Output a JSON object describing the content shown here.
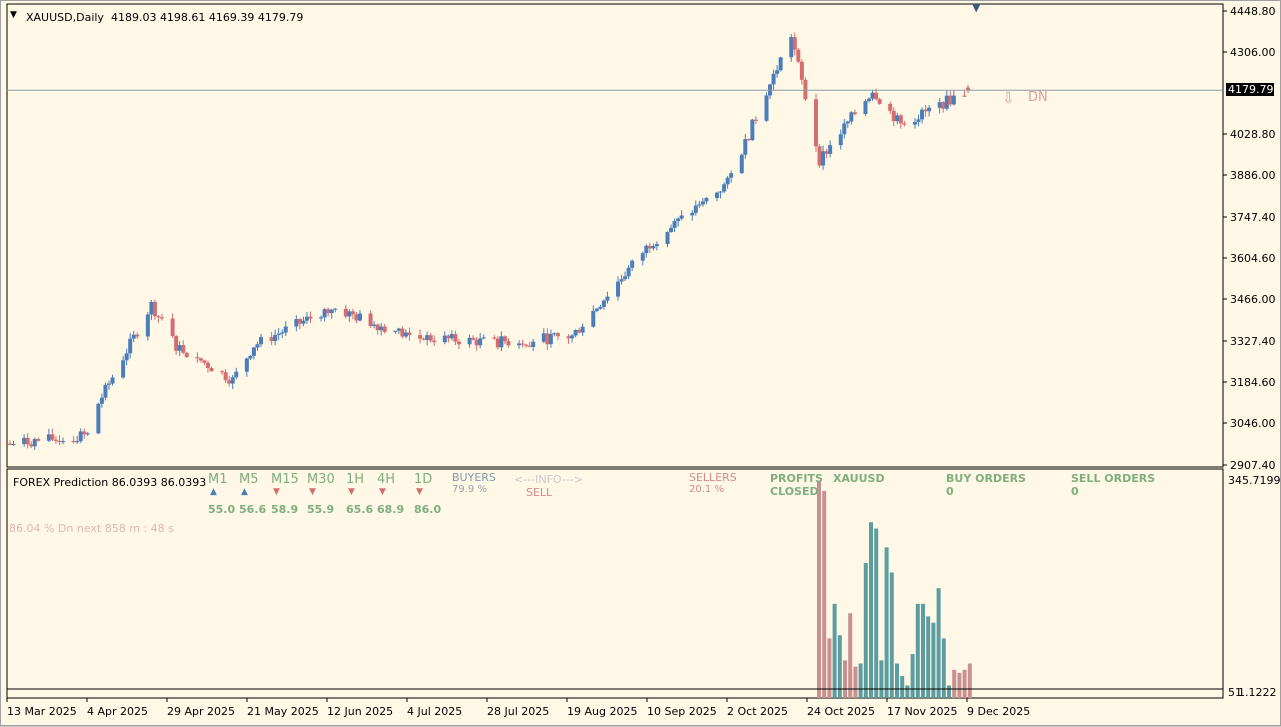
{
  "chart_header": {
    "symbol_tf": "XAUUSD,Daily",
    "ohlc": "4189.03 4198.61 4169.39 4179.79"
  },
  "current_price": "4179.79",
  "signal": "DN",
  "price_axis": [
    "4448.80",
    "4306.00",
    "4028.80",
    "3886.00",
    "3747.40",
    "3604.60",
    "3466.00",
    "3327.40",
    "3184.60",
    "3046.00",
    "2907.40"
  ],
  "date_axis": [
    "13 Mar 2025",
    "4 Apr 2025",
    "29 Apr 2025",
    "21 May 2025",
    "12 Jun 2025",
    "4 Jul 2025",
    "28 Jul 2025",
    "19 Aug 2025",
    "10 Sep 2025",
    "2 Oct 2025",
    "24 Oct 2025",
    "17 Nov 2025",
    "9 Dec 2025"
  ],
  "indicator": {
    "title": "FOREX Prediction 86.0393 86.0393",
    "axis_top": "345.7199",
    "axis_bottom_a": "51",
    "axis_bottom_b": "1.1222",
    "timeframes": [
      {
        "label": "M1",
        "value": "55.0",
        "dir": "up"
      },
      {
        "label": "M5",
        "value": "56.6",
        "dir": "up"
      },
      {
        "label": "M15",
        "value": "58.9",
        "dir": "down"
      },
      {
        "label": "M30",
        "value": "55.9",
        "dir": "down"
      },
      {
        "label": "1H",
        "value": "65.6",
        "dir": "down"
      },
      {
        "label": "4H",
        "value": "68.9",
        "dir": "down"
      },
      {
        "label": "1D",
        "value": "86.0",
        "dir": "down"
      }
    ],
    "buyers_label": "BUYERS",
    "buyers_pct": "79.9 %",
    "info_label": "<---INFO--->",
    "info_signal": "SELL",
    "sellers_label": "SELLERS",
    "sellers_pct": "20.1 %",
    "profits_label": "PROFITS",
    "closed_label": "CLOSED",
    "symbol": "XAUUSD",
    "buy_orders_label": "BUY ORDERS",
    "buy_orders_value": "0",
    "sell_orders_label": "SELL ORDERS",
    "sell_orders_value": "0",
    "prediction_text": "86.04 % Dn next 858 m : 48 s"
  },
  "colors": {
    "background": "#fff8e7",
    "bull": "#4a7ebb",
    "bear": "#d36e70",
    "hist_bull": "#5b9da0",
    "hist_bear": "#c99090"
  },
  "chart_data": {
    "type": "candlestick",
    "symbol": "XAUUSD",
    "timeframe": "Daily",
    "ylim": [
      2880,
      4460
    ],
    "anchors": [
      {
        "date": "13 Mar 2025",
        "close": 2960
      },
      {
        "date": "4 Apr 2025",
        "close": 2990
      },
      {
        "date": "7 Apr 2025",
        "close": 3100
      },
      {
        "date": "22 Apr 2025",
        "close": 3440
      },
      {
        "date": "29 Apr 2025",
        "close": 3300
      },
      {
        "date": "15 May 2025",
        "close": 3180
      },
      {
        "date": "21 May 2025",
        "close": 3300
      },
      {
        "date": "12 Jun 2025",
        "close": 3430
      },
      {
        "date": "4 Jul 2025",
        "close": 3330
      },
      {
        "date": "28 Jul 2025",
        "close": 3310
      },
      {
        "date": "19 Aug 2025",
        "close": 3330
      },
      {
        "date": "10 Sep 2025",
        "close": 3650
      },
      {
        "date": "2 Oct 2025",
        "close": 3860
      },
      {
        "date": "20 Oct 2025",
        "close": 4370
      },
      {
        "date": "28 Oct 2025",
        "close": 3940
      },
      {
        "date": "12 Nov 2025",
        "close": 4180
      },
      {
        "date": "20 Nov 2025",
        "close": 4060
      },
      {
        "date": "9 Dec 2025",
        "close": 4180
      }
    ],
    "last_candle": {
      "open": 4189.03,
      "high": 4198.61,
      "low": 4169.39,
      "close": 4179.79
    },
    "histogram": {
      "ylim": [
        0,
        345.72
      ],
      "bars": [
        {
          "v": 345,
          "dir": "bear"
        },
        {
          "v": 330,
          "dir": "bear"
        },
        {
          "v": 95,
          "dir": "bear"
        },
        {
          "v": 150,
          "dir": "bull"
        },
        {
          "v": 100,
          "dir": "bull"
        },
        {
          "v": 60,
          "dir": "bear"
        },
        {
          "v": 135,
          "dir": "bear"
        },
        {
          "v": 50,
          "dir": "bear"
        },
        {
          "v": 55,
          "dir": "bull"
        },
        {
          "v": 215,
          "dir": "bull"
        },
        {
          "v": 280,
          "dir": "bull"
        },
        {
          "v": 270,
          "dir": "bull"
        },
        {
          "v": 60,
          "dir": "bull"
        },
        {
          "v": 240,
          "dir": "bull"
        },
        {
          "v": 200,
          "dir": "bull"
        },
        {
          "v": 55,
          "dir": "bull"
        },
        {
          "v": 35,
          "dir": "bull"
        },
        {
          "v": 20,
          "dir": "bull"
        },
        {
          "v": 70,
          "dir": "bull"
        },
        {
          "v": 150,
          "dir": "bull"
        },
        {
          "v": 150,
          "dir": "bull"
        },
        {
          "v": 130,
          "dir": "bull"
        },
        {
          "v": 120,
          "dir": "bull"
        },
        {
          "v": 175,
          "dir": "bull"
        },
        {
          "v": 95,
          "dir": "bull"
        },
        {
          "v": 20,
          "dir": "bull"
        },
        {
          "v": 45,
          "dir": "bear"
        },
        {
          "v": 40,
          "dir": "bear"
        },
        {
          "v": 45,
          "dir": "bear"
        },
        {
          "v": 55,
          "dir": "bear"
        }
      ]
    }
  }
}
